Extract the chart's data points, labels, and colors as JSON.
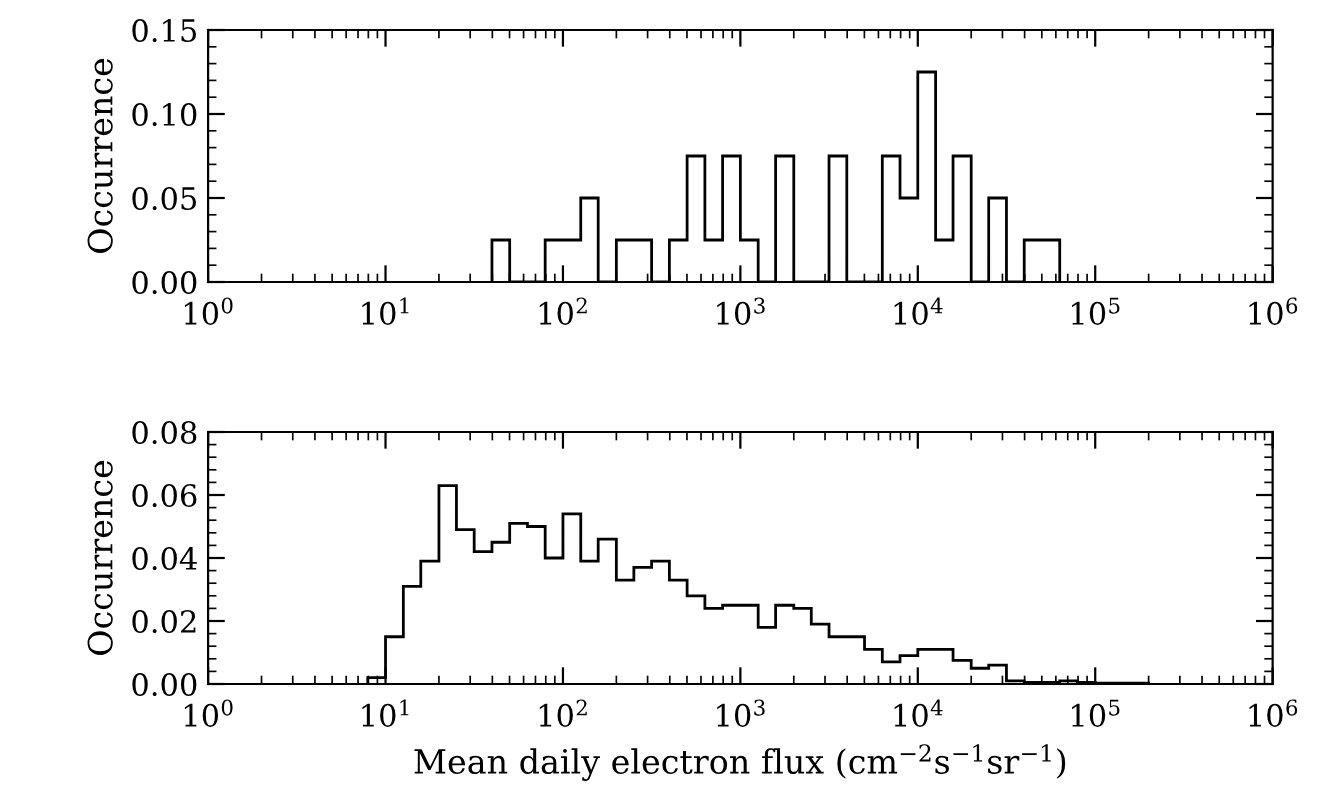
{
  "chart_data": [
    {
      "type": "histogram",
      "ylabel": "Occurrence",
      "color": "#000000",
      "bins": [
        39.8,
        50.1,
        63.1,
        79.4,
        100,
        126,
        158,
        200,
        251,
        316,
        398,
        501,
        631,
        794,
        1000,
        1260,
        1580,
        2000,
        2510,
        3160,
        3980,
        5010,
        6310,
        7940,
        10000,
        12600,
        15800,
        20000,
        25100,
        31600,
        39800,
        50100,
        63100
      ],
      "values": [
        0.025,
        0,
        0,
        0.025,
        0.025,
        0.05,
        0,
        0.025,
        0.025,
        0,
        0.025,
        0.075,
        0.025,
        0.075,
        0.025,
        0,
        0.075,
        0,
        0,
        0.075,
        0,
        0,
        0.075,
        0.05,
        0.125,
        0.025,
        0.075,
        0,
        0.05,
        0,
        0.025,
        0.025
      ],
      "log": "x",
      "xlim": [
        1,
        1000000
      ],
      "xticks": [
        {
          "value": 1,
          "label": "10$^{0}$"
        },
        {
          "value": 10,
          "label": "10$^{1}$"
        },
        {
          "value": 100,
          "label": "10$^{2}$"
        },
        {
          "value": 1000,
          "label": "10$^{3}$"
        },
        {
          "value": 10000,
          "label": "10$^{4}$"
        },
        {
          "value": 100000,
          "label": "10$^{5}$"
        },
        {
          "value": 1000000,
          "label": "10$^{6}$"
        }
      ],
      "ylim": [
        0,
        0.15
      ],
      "yticks": [
        {
          "value": 0,
          "label": "0.00"
        },
        {
          "value": 0.05,
          "label": "0.05"
        },
        {
          "value": 0.1,
          "label": "0.10"
        },
        {
          "value": 0.15,
          "label": "0.15"
        }
      ],
      "grid": false
    },
    {
      "type": "histogram",
      "ylabel": "Occurrence",
      "xlabel": "Mean daily electron flux (cm$^{−2}$s$^{−1}$sr$^{−1}$)",
      "color": "#000000",
      "bins": [
        7.94,
        10,
        12.6,
        15.8,
        20.0,
        25.1,
        31.6,
        39.8,
        50.1,
        63.1,
        79.4,
        100,
        126,
        158,
        200,
        251,
        316,
        398,
        501,
        631,
        794,
        1000,
        1260,
        1580,
        2000,
        2510,
        3160,
        3980,
        5010,
        6310,
        7940,
        10000,
        12600,
        15800,
        20000,
        25100,
        31600,
        39800,
        50100,
        63100,
        79400,
        100000,
        126000,
        158000,
        200000
      ],
      "values": [
        0.002,
        0.015,
        0.031,
        0.039,
        0.063,
        0.049,
        0.042,
        0.045,
        0.051,
        0.05,
        0.04,
        0.054,
        0.039,
        0.046,
        0.033,
        0.037,
        0.039,
        0.033,
        0.028,
        0.024,
        0.025,
        0.025,
        0.018,
        0.025,
        0.024,
        0.019,
        0.015,
        0.015,
        0.011,
        0.007,
        0.009,
        0.011,
        0.011,
        0.0075,
        0.005,
        0.006,
        0.001,
        0.0005,
        0.0005,
        0.001,
        0.0005,
        0.0003,
        0.0003,
        0.0003
      ],
      "log": "x",
      "xlim": [
        1,
        1000000
      ],
      "xticks": [
        {
          "value": 1,
          "label": "10$^{0}$"
        },
        {
          "value": 10,
          "label": "10$^{1}$"
        },
        {
          "value": 100,
          "label": "10$^{2}$"
        },
        {
          "value": 1000,
          "label": "10$^{3}$"
        },
        {
          "value": 10000,
          "label": "10$^{4}$"
        },
        {
          "value": 100000,
          "label": "10$^{5}$"
        },
        {
          "value": 1000000,
          "label": "10$^{6}$"
        }
      ],
      "ylim": [
        0,
        0.08
      ],
      "yticks": [
        {
          "value": 0,
          "label": "0.00"
        },
        {
          "value": 0.02,
          "label": "0.02"
        },
        {
          "value": 0.04,
          "label": "0.04"
        },
        {
          "value": 0.06,
          "label": "0.06"
        },
        {
          "value": 0.08,
          "label": "0.08"
        }
      ],
      "grid": false
    }
  ]
}
